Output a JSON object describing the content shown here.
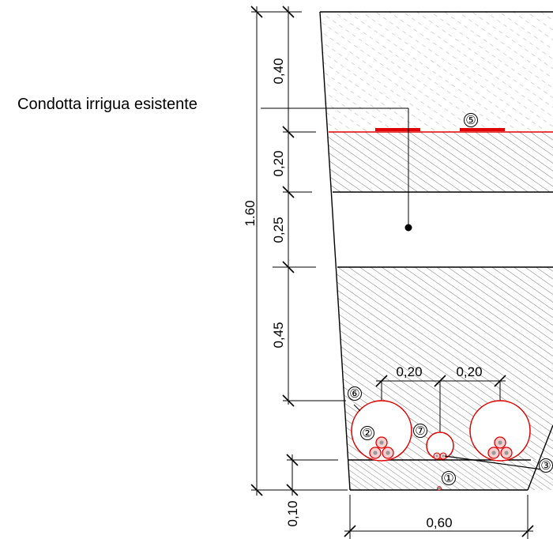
{
  "annotation": {
    "existing_pipe_label": "Condotta irrigua esistente"
  },
  "dimensions": {
    "total_depth": "1.60",
    "layer_top": "0,40",
    "layer_warning_tape": "0,20",
    "layer_pipe_zone": "0,25",
    "layer_backfill": "0,45",
    "layer_bedding": "0,10",
    "trench_width": "0,60",
    "spacing_left": "0,20",
    "spacing_right": "0,20"
  },
  "markers": {
    "m1": "①",
    "m2": "②",
    "m3": "③",
    "m5": "⑤",
    "m6": "⑥",
    "m7": "⑦"
  },
  "colors": {
    "cable_red": "#e00000",
    "line": "#000000",
    "hatch": "#555555",
    "core_grey": "#999999"
  }
}
